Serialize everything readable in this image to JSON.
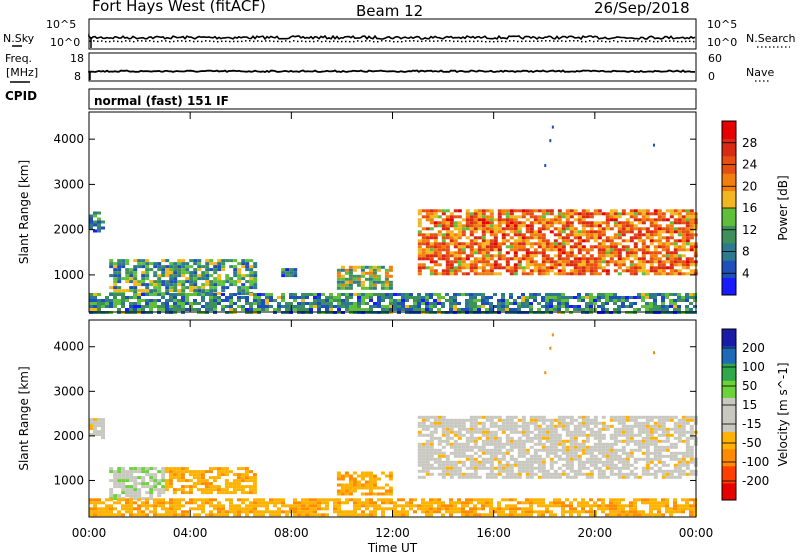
{
  "header": {
    "radar": "Fort Hays West (fitACF)",
    "beam": "Beam 12",
    "date": "26/Sep/2018"
  },
  "noise_panel": {
    "left_label": "N.Sky",
    "right_label": "N.Search",
    "left_ticks": [
      "10^5",
      "10^0"
    ],
    "right_ticks": [
      "10^5",
      "10^0"
    ]
  },
  "freq_panel": {
    "left_label_1": "Freq.",
    "left_label_2": "[MHz]",
    "right_label": "Nave",
    "left_ticks": [
      "18",
      "8"
    ],
    "right_ticks": [
      "60",
      "0"
    ]
  },
  "cpid_panel": {
    "label": "CPID",
    "text": "normal (fast) 151 IF"
  },
  "x_axis": {
    "title": "Time UT",
    "ticks": [
      "00:00",
      "04:00",
      "08:00",
      "12:00",
      "16:00",
      "20:00",
      "00:00"
    ]
  },
  "colors": {
    "power": [
      "#1a1aff",
      "#1f4fb8",
      "#2d7a8f",
      "#3f8f5a",
      "#5fbf3a",
      "#f2b71e",
      "#f07f0e",
      "#e64e12",
      "#d92a13",
      "#e60000"
    ],
    "velocity": [
      "#e60000",
      "#ff4000",
      "#ff8c00",
      "#ffb300",
      "#c8c8c0",
      "#c8c8c0",
      "#6cd23a",
      "#2fa84a",
      "#1f6ab8",
      "#1a1aa8"
    ]
  },
  "chart_data": [
    {
      "type": "heatmap",
      "title": "",
      "xlabel": "Time UT",
      "ylabel": "Slant Range [km]",
      "x_range_hours": [
        0,
        24
      ],
      "ylim": [
        180,
        4600
      ],
      "y_ticks": [
        1000,
        2000,
        3000,
        4000
      ],
      "colorbar": {
        "label": "Power [dB]",
        "range": [
          0,
          32
        ],
        "ticks": [
          "4",
          "8",
          "12",
          "16",
          "20",
          "24",
          "28"
        ],
        "tick_values": [
          4,
          8,
          12,
          16,
          20,
          24,
          28
        ]
      },
      "regions": [
        {
          "t": [
            0.0,
            0.5
          ],
          "range_km": [
            1950,
            2400
          ],
          "level": 0.3
        },
        {
          "t": [
            0.8,
            6.5
          ],
          "range_km": [
            600,
            1350
          ],
          "level": 0.35
        },
        {
          "t": [
            0,
            24
          ],
          "range_km": [
            200,
            600
          ],
          "level": 0.3
        },
        {
          "t": [
            7.6,
            8.1
          ],
          "range_km": [
            1000,
            1150
          ],
          "level": 0.25
        },
        {
          "t": [
            9.8,
            12.0
          ],
          "range_km": [
            700,
            1200
          ],
          "level": 0.45
        },
        {
          "t": [
            13.0,
            24.0
          ],
          "range_km": [
            1050,
            2450
          ],
          "level": 0.7
        }
      ]
    },
    {
      "type": "heatmap",
      "title": "",
      "xlabel": "Time UT",
      "ylabel": "Slant Range [km]",
      "x_range_hours": [
        0,
        24
      ],
      "ylim": [
        180,
        4600
      ],
      "y_ticks": [
        1000,
        2000,
        3000,
        4000
      ],
      "colorbar": {
        "label": "Velocity [m s^-1]",
        "range": [
          -250,
          250
        ],
        "ticks": [
          "200",
          "100",
          "50",
          "15",
          "-15",
          "-50",
          "-100",
          "-200"
        ],
        "tick_values": [
          200,
          100,
          50,
          15,
          -15,
          -50,
          -100,
          -200
        ]
      },
      "regions": [
        {
          "t": [
            0.0,
            0.5
          ],
          "range_km": [
            1950,
            2400
          ],
          "velocity": 0
        },
        {
          "t": [
            0.8,
            3.0
          ],
          "range_km": [
            600,
            1300
          ],
          "velocity": 40
        },
        {
          "t": [
            3.0,
            6.5
          ],
          "range_km": [
            700,
            1300
          ],
          "velocity": -40
        },
        {
          "t": [
            0,
            24
          ],
          "range_km": [
            200,
            600
          ],
          "velocity": -40
        },
        {
          "t": [
            9.8,
            12.0
          ],
          "range_km": [
            700,
            1200
          ],
          "velocity": -45
        },
        {
          "t": [
            13.0,
            24.0
          ],
          "range_km": [
            1050,
            2450
          ],
          "velocity": 0
        }
      ]
    }
  ]
}
